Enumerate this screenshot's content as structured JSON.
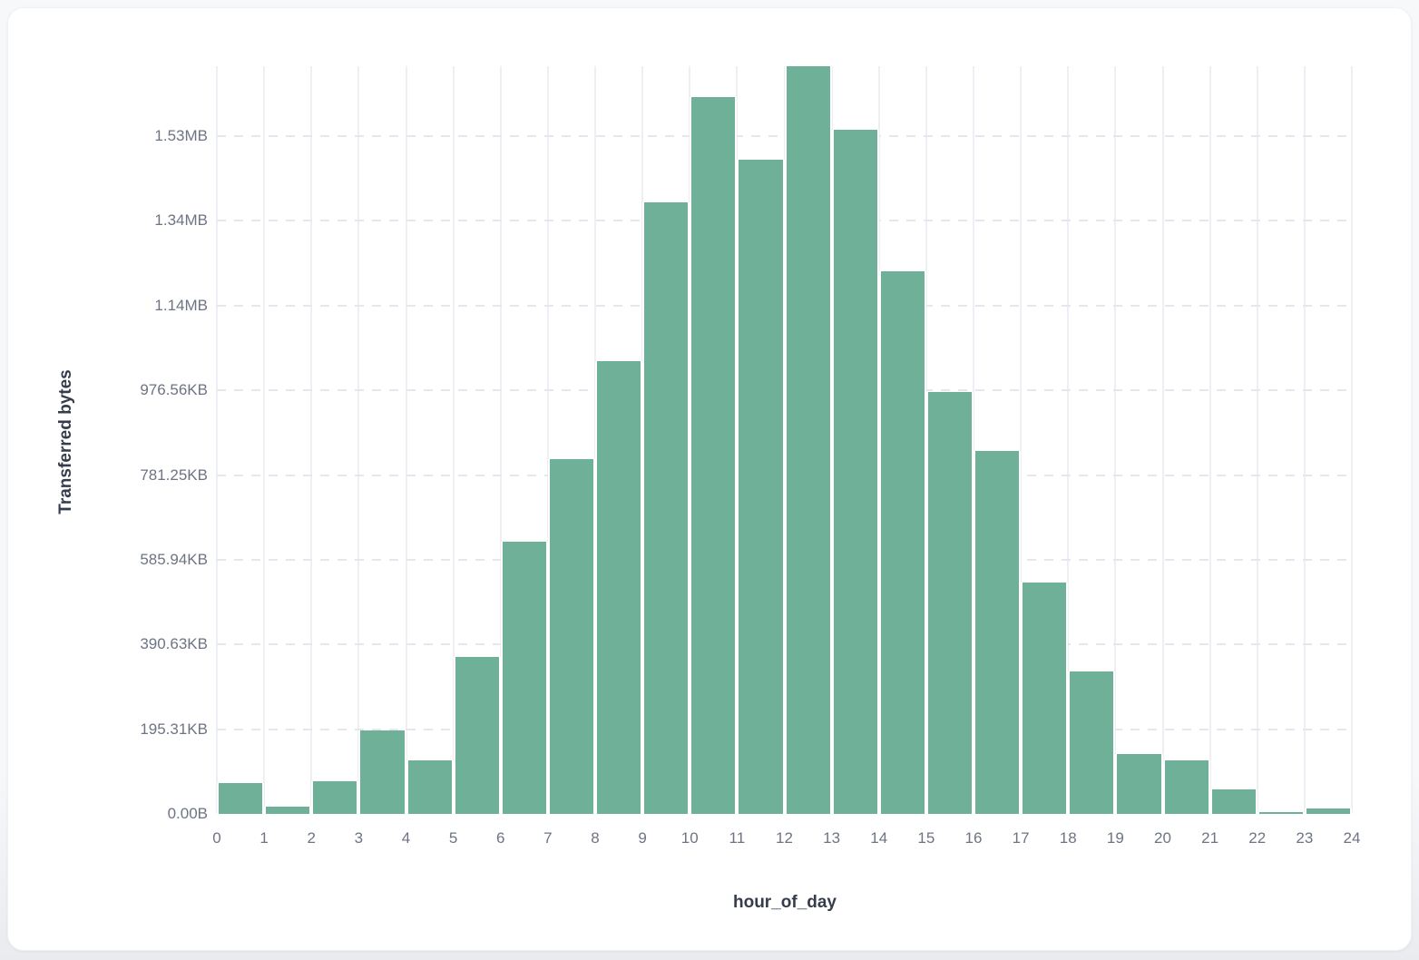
{
  "page": {
    "background": "#f7f8fa",
    "card_background": "#ffffff"
  },
  "chart_data": {
    "type": "bar",
    "title": "",
    "xlabel": "hour_of_day",
    "ylabel": "Transferred bytes",
    "legend": "none",
    "bar_color": "#6eb198",
    "grid": {
      "horizontal": "dashed",
      "vertical": "solid",
      "vgrid_color": "#edeff4",
      "hgrid_color": "#e4e7ed"
    },
    "x_tick_labels": [
      "0",
      "1",
      "2",
      "3",
      "4",
      "5",
      "6",
      "7",
      "8",
      "9",
      "10",
      "11",
      "12",
      "13",
      "14",
      "15",
      "16",
      "17",
      "18",
      "19",
      "20",
      "21",
      "22",
      "23",
      "24"
    ],
    "y_tick_labels": [
      "0.00B",
      "195.31KB",
      "390.63KB",
      "585.94KB",
      "781.25KB",
      "976.56KB",
      "1.14MB",
      "1.34MB",
      "1.53MB"
    ],
    "y_tick_values_bytes": [
      0,
      200000,
      400000,
      600000,
      800000,
      1000000,
      1200000,
      1400000,
      1600000
    ],
    "categories": [
      0,
      1,
      2,
      3,
      4,
      5,
      6,
      7,
      8,
      9,
      10,
      11,
      12,
      13,
      14,
      15,
      16,
      17,
      18,
      19,
      20,
      21,
      22,
      23
    ],
    "values_bytes": [
      73400,
      16500,
      77100,
      197000,
      125700,
      369800,
      643000,
      837200,
      1069100,
      1443800,
      1691600,
      1544500,
      1765100,
      1615200,
      1281200,
      996400,
      857200,
      546700,
      336200,
      140700,
      125700,
      57800,
      3600,
      12800
    ],
    "ylim_bytes": [
      0,
      1765100
    ],
    "xlim": [
      0,
      24
    ]
  }
}
